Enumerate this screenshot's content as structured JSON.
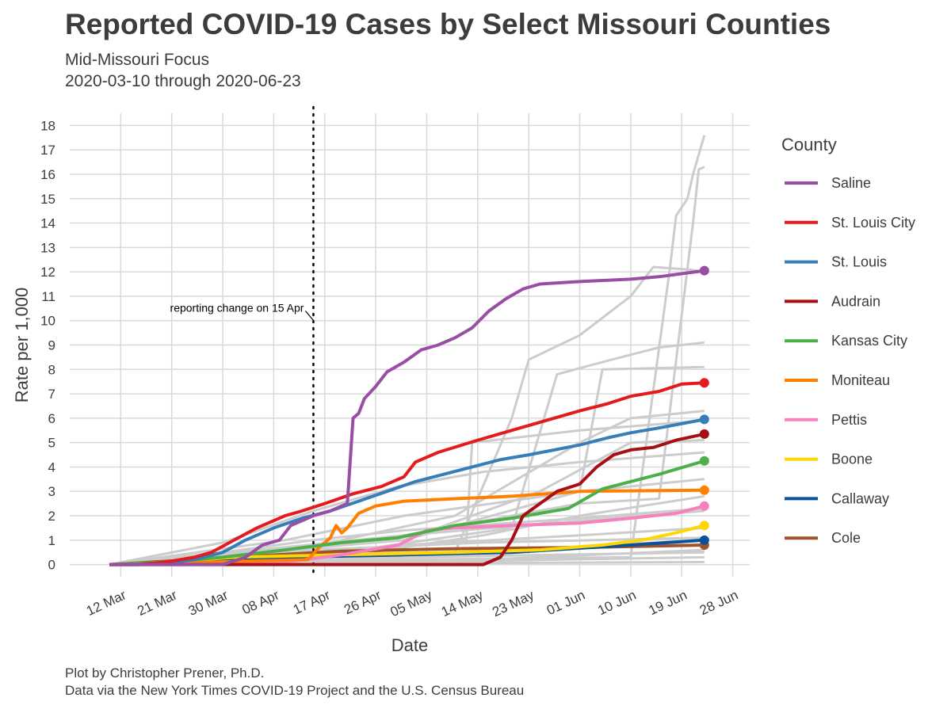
{
  "header": {
    "title": "Reported COVID-19 Cases by Select Missouri Counties",
    "subtitle_line1": "Mid-Missouri Focus",
    "subtitle_line2": "2020-03-10 through 2020-06-23"
  },
  "footer": {
    "caption_line1": "Plot by Christopher Prener, Ph.D.",
    "caption_line2": "Data via the New York Times COVID-19 Project and the U.S. Census Bureau"
  },
  "colors": {
    "background_series": "#cccccc",
    "grid": "#d9d9d9",
    "text": "#3c3c3c"
  },
  "chart_data": {
    "type": "line",
    "title": "Reported COVID-19 Cases by Select Missouri Counties",
    "subtitle": "Mid-Missouri Focus\n2020-03-10 through 2020-06-23",
    "xlabel": "Date",
    "ylabel": "Rate per 1,000",
    "x_ticks": [
      "2020-03-12",
      "2020-03-21",
      "2020-03-30",
      "2020-04-08",
      "2020-04-17",
      "2020-04-26",
      "2020-05-05",
      "2020-05-14",
      "2020-05-23",
      "2020-06-01",
      "2020-06-10",
      "2020-06-19",
      "2020-06-28"
    ],
    "x_tick_labels": [
      "12 Mar",
      "21 Mar",
      "30 Mar",
      "08 Apr",
      "17 Apr",
      "26 Apr",
      "05 May",
      "14 May",
      "23 May",
      "01 Jun",
      "10 Jun",
      "19 Jun",
      "28 Jun"
    ],
    "xlim": [
      "2020-03-03",
      "2020-07-01"
    ],
    "ylim": [
      -0.5,
      18.5
    ],
    "y_ticks": [
      0,
      1,
      2,
      3,
      4,
      5,
      6,
      7,
      8,
      9,
      10,
      11,
      12,
      13,
      14,
      15,
      16,
      17,
      18
    ],
    "grid": true,
    "legend": {
      "title": "County",
      "position": "right"
    },
    "annotation": {
      "text": "reporting change on 15 Apr",
      "x": "2020-04-15",
      "y": 10.3,
      "line": "dotted vertical"
    },
    "series": [
      {
        "name": "Saline",
        "color": "#984ea3",
        "points": [
          [
            "2020-03-10",
            0
          ],
          [
            "2020-03-30",
            0
          ],
          [
            "2020-04-03",
            0.3
          ],
          [
            "2020-04-06",
            0.8
          ],
          [
            "2020-04-09",
            1.0
          ],
          [
            "2020-04-11",
            1.6
          ],
          [
            "2020-04-13",
            1.8
          ],
          [
            "2020-04-15",
            2.0
          ],
          [
            "2020-04-18",
            2.2
          ],
          [
            "2020-04-21",
            2.5
          ],
          [
            "2020-04-22",
            6.0
          ],
          [
            "2020-04-23",
            6.2
          ],
          [
            "2020-04-24",
            6.8
          ],
          [
            "2020-04-26",
            7.3
          ],
          [
            "2020-04-28",
            7.9
          ],
          [
            "2020-05-01",
            8.3
          ],
          [
            "2020-05-04",
            8.8
          ],
          [
            "2020-05-07",
            9.0
          ],
          [
            "2020-05-10",
            9.3
          ],
          [
            "2020-05-13",
            9.7
          ],
          [
            "2020-05-16",
            10.4
          ],
          [
            "2020-05-19",
            10.9
          ],
          [
            "2020-05-22",
            11.3
          ],
          [
            "2020-05-25",
            11.5
          ],
          [
            "2020-06-01",
            11.6
          ],
          [
            "2020-06-10",
            11.7
          ],
          [
            "2020-06-15",
            11.8
          ],
          [
            "2020-06-23",
            12.05
          ]
        ]
      },
      {
        "name": "St. Louis City",
        "color": "#e41a1c",
        "points": [
          [
            "2020-03-10",
            0
          ],
          [
            "2020-03-15",
            0
          ],
          [
            "2020-03-20",
            0.1
          ],
          [
            "2020-03-25",
            0.3
          ],
          [
            "2020-03-28",
            0.5
          ],
          [
            "2020-04-01",
            1.0
          ],
          [
            "2020-04-05",
            1.5
          ],
          [
            "2020-04-08",
            1.8
          ],
          [
            "2020-04-10",
            2.0
          ],
          [
            "2020-04-13",
            2.2
          ],
          [
            "2020-04-17",
            2.5
          ],
          [
            "2020-04-22",
            2.9
          ],
          [
            "2020-04-27",
            3.2
          ],
          [
            "2020-05-01",
            3.6
          ],
          [
            "2020-05-03",
            4.2
          ],
          [
            "2020-05-07",
            4.6
          ],
          [
            "2020-05-14",
            5.1
          ],
          [
            "2020-05-23",
            5.7
          ],
          [
            "2020-06-01",
            6.3
          ],
          [
            "2020-06-06",
            6.6
          ],
          [
            "2020-06-10",
            6.9
          ],
          [
            "2020-06-15",
            7.1
          ],
          [
            "2020-06-19",
            7.4
          ],
          [
            "2020-06-23",
            7.45
          ]
        ]
      },
      {
        "name": "St. Louis",
        "color": "#377eb8",
        "points": [
          [
            "2020-03-10",
            0
          ],
          [
            "2020-03-15",
            0
          ],
          [
            "2020-03-20",
            0.05
          ],
          [
            "2020-03-25",
            0.2
          ],
          [
            "2020-03-30",
            0.5
          ],
          [
            "2020-04-03",
            1.0
          ],
          [
            "2020-04-08",
            1.5
          ],
          [
            "2020-04-13",
            1.9
          ],
          [
            "2020-04-18",
            2.2
          ],
          [
            "2020-04-23",
            2.6
          ],
          [
            "2020-04-28",
            3.0
          ],
          [
            "2020-05-03",
            3.4
          ],
          [
            "2020-05-08",
            3.7
          ],
          [
            "2020-05-13",
            4.0
          ],
          [
            "2020-05-18",
            4.3
          ],
          [
            "2020-05-23",
            4.5
          ],
          [
            "2020-06-01",
            4.9
          ],
          [
            "2020-06-06",
            5.2
          ],
          [
            "2020-06-10",
            5.4
          ],
          [
            "2020-06-15",
            5.6
          ],
          [
            "2020-06-23",
            5.95
          ]
        ]
      },
      {
        "name": "Audrain",
        "color": "#a50f15",
        "points": [
          [
            "2020-03-10",
            0
          ],
          [
            "2020-05-15",
            0
          ],
          [
            "2020-05-18",
            0.3
          ],
          [
            "2020-05-20",
            1.0
          ],
          [
            "2020-05-22",
            2.0
          ],
          [
            "2020-05-25",
            2.5
          ],
          [
            "2020-05-28",
            3.0
          ],
          [
            "2020-06-01",
            3.3
          ],
          [
            "2020-06-04",
            4.0
          ],
          [
            "2020-06-07",
            4.5
          ],
          [
            "2020-06-10",
            4.7
          ],
          [
            "2020-06-14",
            4.8
          ],
          [
            "2020-06-18",
            5.1
          ],
          [
            "2020-06-23",
            5.35
          ]
        ]
      },
      {
        "name": "Kansas City",
        "color": "#4daf4a",
        "points": [
          [
            "2020-03-10",
            0
          ],
          [
            "2020-03-20",
            0.1
          ],
          [
            "2020-03-30",
            0.3
          ],
          [
            "2020-04-10",
            0.6
          ],
          [
            "2020-04-20",
            0.9
          ],
          [
            "2020-04-30",
            1.1
          ],
          [
            "2020-05-10",
            1.6
          ],
          [
            "2020-05-20",
            1.9
          ],
          [
            "2020-05-30",
            2.3
          ],
          [
            "2020-06-05",
            3.1
          ],
          [
            "2020-06-10",
            3.4
          ],
          [
            "2020-06-15",
            3.7
          ],
          [
            "2020-06-23",
            4.25
          ]
        ]
      },
      {
        "name": "Moniteau",
        "color": "#ff7f00",
        "points": [
          [
            "2020-03-10",
            0
          ],
          [
            "2020-04-14",
            0.2
          ],
          [
            "2020-04-16",
            0.7
          ],
          [
            "2020-04-18",
            1.1
          ],
          [
            "2020-04-19",
            1.6
          ],
          [
            "2020-04-20",
            1.3
          ],
          [
            "2020-04-21",
            1.5
          ],
          [
            "2020-04-23",
            2.1
          ],
          [
            "2020-04-26",
            2.4
          ],
          [
            "2020-05-01",
            2.6
          ],
          [
            "2020-05-10",
            2.7
          ],
          [
            "2020-05-20",
            2.8
          ],
          [
            "2020-06-01",
            3.0
          ],
          [
            "2020-06-23",
            3.05
          ]
        ]
      },
      {
        "name": "Pettis",
        "color": "#f781bf",
        "points": [
          [
            "2020-03-10",
            0
          ],
          [
            "2020-04-10",
            0.1
          ],
          [
            "2020-04-20",
            0.4
          ],
          [
            "2020-04-30",
            0.8
          ],
          [
            "2020-05-05",
            1.4
          ],
          [
            "2020-05-10",
            1.5
          ],
          [
            "2020-05-20",
            1.6
          ],
          [
            "2020-06-01",
            1.7
          ],
          [
            "2020-06-10",
            1.9
          ],
          [
            "2020-06-18",
            2.1
          ],
          [
            "2020-06-23",
            2.4
          ]
        ]
      },
      {
        "name": "Boone",
        "color": "#ffd700",
        "points": [
          [
            "2020-03-10",
            0
          ],
          [
            "2020-03-20",
            0.1
          ],
          [
            "2020-04-01",
            0.3
          ],
          [
            "2020-04-20",
            0.4
          ],
          [
            "2020-05-10",
            0.5
          ],
          [
            "2020-05-25",
            0.6
          ],
          [
            "2020-06-05",
            0.8
          ],
          [
            "2020-06-12",
            1.0
          ],
          [
            "2020-06-18",
            1.3
          ],
          [
            "2020-06-23",
            1.6
          ]
        ]
      },
      {
        "name": "Callaway",
        "color": "#08519c",
        "points": [
          [
            "2020-03-10",
            0
          ],
          [
            "2020-03-30",
            0.2
          ],
          [
            "2020-04-10",
            0.3
          ],
          [
            "2020-05-01",
            0.4
          ],
          [
            "2020-05-20",
            0.5
          ],
          [
            "2020-06-10",
            0.8
          ],
          [
            "2020-06-23",
            1.0
          ]
        ]
      },
      {
        "name": "Cole",
        "color": "#a0522d",
        "points": [
          [
            "2020-03-10",
            0
          ],
          [
            "2020-03-25",
            0.2
          ],
          [
            "2020-04-05",
            0.35
          ],
          [
            "2020-04-20",
            0.55
          ],
          [
            "2020-05-10",
            0.65
          ],
          [
            "2020-06-01",
            0.7
          ],
          [
            "2020-06-23",
            0.8
          ]
        ]
      }
    ],
    "background_series_gray": [
      [
        [
          "2020-03-10",
          0
        ],
        [
          "2020-03-20",
          0.1
        ],
        [
          "2020-04-01",
          0.5
        ],
        [
          "2020-05-01",
          1.2
        ],
        [
          "2020-05-20",
          2.0
        ],
        [
          "2020-06-01",
          2.5
        ],
        [
          "2020-06-15",
          2.7
        ],
        [
          "2020-06-21",
          14.0
        ],
        [
          "2020-06-22",
          16.2
        ],
        [
          "2020-06-23",
          16.3
        ]
      ],
      [
        [
          "2020-03-10",
          0
        ],
        [
          "2020-05-01",
          0.2
        ],
        [
          "2020-06-10",
          0.3
        ],
        [
          "2020-06-17",
          12.3
        ],
        [
          "2020-06-18",
          14.3
        ],
        [
          "2020-06-20",
          15.0
        ],
        [
          "2020-06-21",
          16.0
        ],
        [
          "2020-06-23",
          17.6
        ]
      ],
      [
        [
          "2020-03-10",
          0
        ],
        [
          "2020-05-10",
          0.5
        ],
        [
          "2020-05-20",
          6.0
        ],
        [
          "2020-05-23",
          8.4
        ],
        [
          "2020-06-01",
          9.4
        ],
        [
          "2020-06-10",
          11.0
        ],
        [
          "2020-06-14",
          12.2
        ],
        [
          "2020-06-20",
          12.1
        ],
        [
          "2020-06-23",
          12.0
        ]
      ],
      [
        [
          "2020-03-10",
          0
        ],
        [
          "2020-04-20",
          0.5
        ],
        [
          "2020-05-20",
          1.5
        ],
        [
          "2020-05-28",
          7.8
        ],
        [
          "2020-06-05",
          8.3
        ],
        [
          "2020-06-15",
          8.9
        ],
        [
          "2020-06-23",
          9.1
        ]
      ],
      [
        [
          "2020-03-10",
          0
        ],
        [
          "2020-05-01",
          1.0
        ],
        [
          "2020-06-01",
          3.0
        ],
        [
          "2020-06-05",
          8.0
        ],
        [
          "2020-06-23",
          8.1
        ]
      ],
      [
        [
          "2020-03-10",
          0
        ],
        [
          "2020-04-10",
          0.5
        ],
        [
          "2020-05-10",
          2.0
        ],
        [
          "2020-06-01",
          5.0
        ],
        [
          "2020-06-10",
          6.0
        ],
        [
          "2020-06-23",
          6.3
        ]
      ],
      [
        [
          "2020-03-10",
          0
        ],
        [
          "2020-04-20",
          0.5
        ],
        [
          "2020-05-12",
          1.0
        ],
        [
          "2020-05-13",
          5.0
        ],
        [
          "2020-06-01",
          5.5
        ],
        [
          "2020-06-23",
          5.9
        ]
      ],
      [
        [
          "2020-03-10",
          0
        ],
        [
          "2020-05-01",
          1.0
        ],
        [
          "2020-05-25",
          3.0
        ],
        [
          "2020-06-10",
          5.0
        ],
        [
          "2020-06-23",
          5.1
        ]
      ],
      [
        [
          "2020-03-10",
          0
        ],
        [
          "2020-04-10",
          1.0
        ],
        [
          "2020-05-01",
          2.0
        ],
        [
          "2020-06-01",
          3.0
        ],
        [
          "2020-06-23",
          3.5
        ]
      ],
      [
        [
          "2020-03-10",
          0
        ],
        [
          "2020-04-25",
          0.5
        ],
        [
          "2020-05-15",
          1.2
        ],
        [
          "2020-06-01",
          2.0
        ],
        [
          "2020-06-23",
          2.8
        ]
      ],
      [
        [
          "2020-03-10",
          0
        ],
        [
          "2020-04-10",
          0.5
        ],
        [
          "2020-05-01",
          1.2
        ],
        [
          "2020-06-01",
          1.8
        ],
        [
          "2020-06-23",
          2.2
        ]
      ],
      [
        [
          "2020-03-10",
          0
        ],
        [
          "2020-03-30",
          0.9
        ],
        [
          "2020-04-15",
          2.2
        ],
        [
          "2020-04-30",
          3.2
        ],
        [
          "2020-05-15",
          3.8
        ],
        [
          "2020-06-01",
          4.2
        ],
        [
          "2020-06-23",
          4.6
        ]
      ],
      [
        [
          "2020-03-10",
          0
        ],
        [
          "2020-03-30",
          0.5
        ],
        [
          "2020-04-15",
          1.0
        ],
        [
          "2020-05-01",
          1.4
        ],
        [
          "2020-06-01",
          1.9
        ],
        [
          "2020-06-23",
          2.3
        ]
      ],
      [
        [
          "2020-03-10",
          0
        ],
        [
          "2020-04-10",
          0.3
        ],
        [
          "2020-05-01",
          0.8
        ],
        [
          "2020-06-01",
          1.2
        ],
        [
          "2020-06-23",
          1.5
        ]
      ],
      [
        [
          "2020-03-10",
          0
        ],
        [
          "2020-04-20",
          0.2
        ],
        [
          "2020-05-20",
          0.6
        ],
        [
          "2020-06-23",
          1.0
        ]
      ],
      [
        [
          "2020-03-10",
          0
        ],
        [
          "2020-04-01",
          0.1
        ],
        [
          "2020-05-01",
          0.3
        ],
        [
          "2020-06-23",
          0.5
        ]
      ],
      [
        [
          "2020-03-10",
          0
        ],
        [
          "2020-05-01",
          0.1
        ],
        [
          "2020-06-23",
          0.3
        ]
      ],
      [
        [
          "2020-03-10",
          0
        ],
        [
          "2020-06-23",
          0.1
        ]
      ],
      [
        [
          "2020-03-10",
          0
        ],
        [
          "2020-05-15",
          0.2
        ],
        [
          "2020-06-23",
          0.6
        ]
      ],
      [
        [
          "2020-03-10",
          0
        ],
        [
          "2020-04-15",
          0.6
        ],
        [
          "2020-05-15",
          0.9
        ],
        [
          "2020-06-23",
          1.1
        ]
      ]
    ]
  }
}
